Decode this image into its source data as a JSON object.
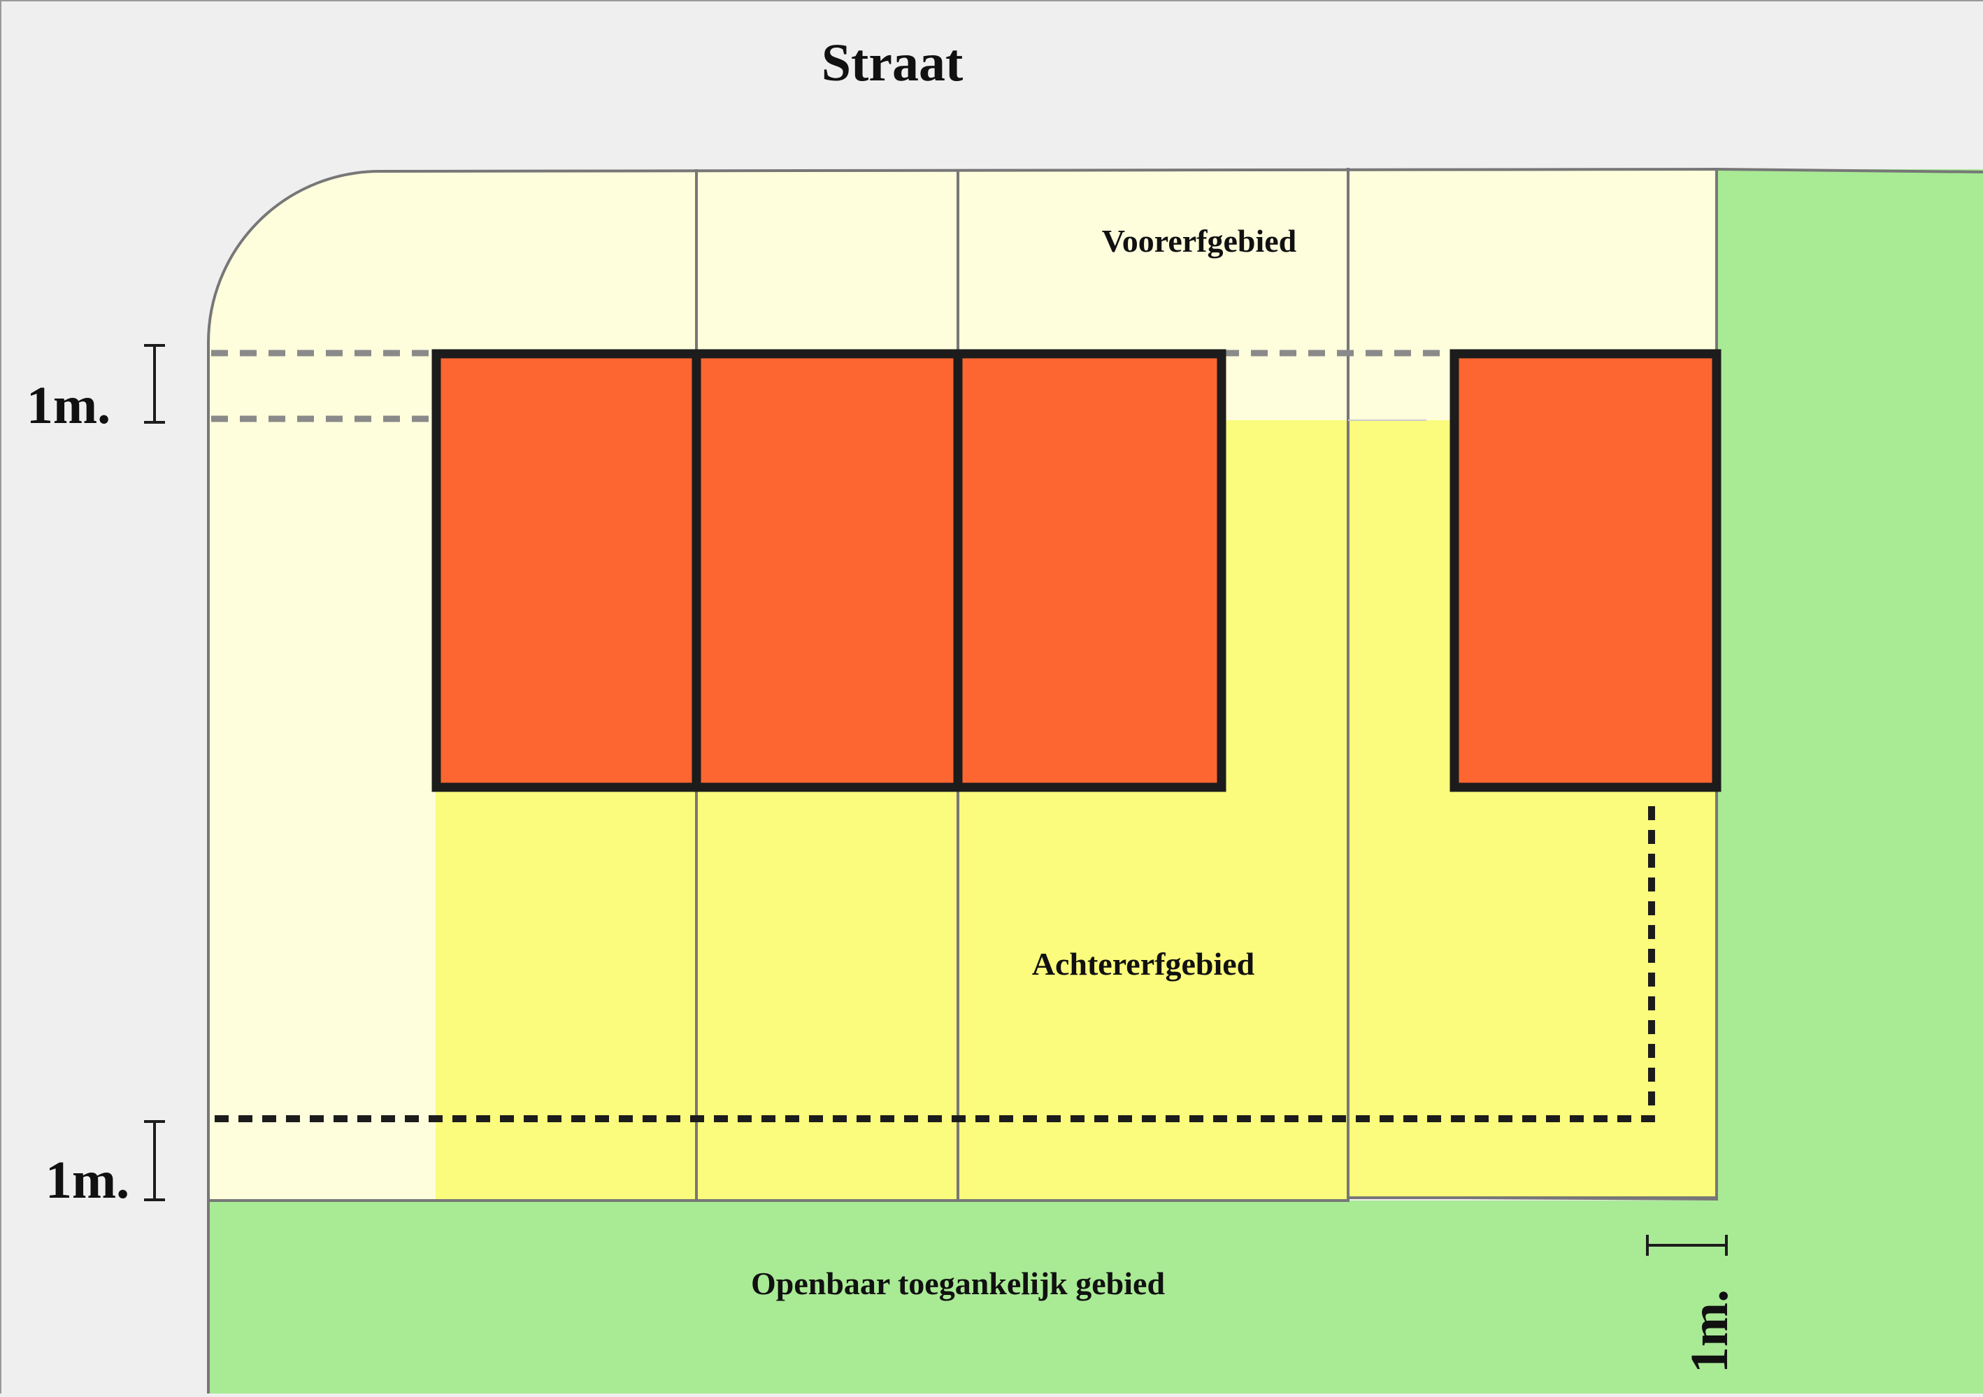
{
  "labels": {
    "street": "Straat",
    "front_yard": "Voorerfgebied",
    "back_yard": "Achtererfgebied",
    "public_area": "Openbaar toegankelijk gebied"
  },
  "dimensions": {
    "top_left": "1m.",
    "bottom_left": "1m.",
    "bottom_right": "1m."
  },
  "colors": {
    "background": "#efefef",
    "front_yard": "#fefedd",
    "back_yard": "#fbfb7d",
    "public_green": "#a9ea95",
    "building": "#fd6630",
    "outline": "#1c1c1c",
    "plot_line": "#777777"
  }
}
